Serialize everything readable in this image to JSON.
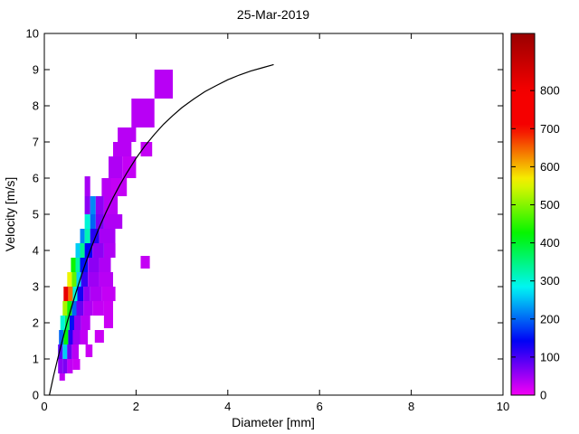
{
  "figure": {
    "background": "#ffffff",
    "axis_color": "#000000"
  },
  "chart_data": {
    "type": "heatmap",
    "title": "25-Mar-2019",
    "xlabel": "Diameter [mm]",
    "ylabel": "Velocity [m/s]",
    "xlim": [
      0,
      10
    ],
    "ylim": [
      0,
      10
    ],
    "xticks": [
      0,
      2,
      4,
      6,
      8,
      10
    ],
    "yticks": [
      0,
      1,
      2,
      3,
      4,
      5,
      6,
      7,
      8,
      9,
      10
    ],
    "grid": false,
    "legend": "none",
    "colorbar": {
      "position": "right",
      "min": 0,
      "max": 950,
      "ticks": [
        0,
        100,
        200,
        300,
        400,
        500,
        600,
        700,
        800
      ],
      "colormap": "reversed-hsv (magenta -> blue -> cyan -> green -> yellow -> orange -> red -> dark red)",
      "bottom_color": "#e600e6",
      "top_color": "#990000"
    },
    "cells_format": [
      "d_min_mm",
      "v_min_ms",
      "d_max_mm",
      "v_max_ms",
      "count"
    ],
    "cells": [
      [
        2.4,
        8.2,
        2.8,
        9.0,
        35
      ],
      [
        1.9,
        7.4,
        2.4,
        8.2,
        35
      ],
      [
        1.6,
        7.0,
        2.0,
        7.4,
        35
      ],
      [
        1.5,
        6.6,
        1.9,
        7.0,
        35
      ],
      [
        2.1,
        6.6,
        2.35,
        7.0,
        28
      ],
      [
        1.4,
        6.0,
        1.7,
        6.6,
        40
      ],
      [
        1.7,
        6.0,
        2.0,
        6.6,
        28
      ],
      [
        0.88,
        5.5,
        1.0,
        6.05,
        45
      ],
      [
        1.25,
        5.5,
        1.45,
        6.0,
        35
      ],
      [
        1.45,
        5.5,
        1.8,
        6.0,
        28
      ],
      [
        0.88,
        5.0,
        1.0,
        5.5,
        60
      ],
      [
        1.0,
        5.0,
        1.12,
        5.5,
        220
      ],
      [
        1.12,
        5.0,
        1.3,
        5.5,
        60
      ],
      [
        1.3,
        5.0,
        1.6,
        5.5,
        35
      ],
      [
        0.88,
        4.6,
        1.0,
        5.0,
        300
      ],
      [
        1.0,
        4.6,
        1.12,
        5.0,
        200
      ],
      [
        1.12,
        4.6,
        1.3,
        5.0,
        70
      ],
      [
        1.3,
        4.6,
        1.7,
        5.0,
        40
      ],
      [
        0.78,
        4.2,
        0.88,
        4.6,
        220
      ],
      [
        0.88,
        4.2,
        1.0,
        4.6,
        320
      ],
      [
        1.0,
        4.2,
        1.2,
        4.6,
        120
      ],
      [
        1.2,
        4.2,
        1.55,
        4.6,
        45
      ],
      [
        0.68,
        3.8,
        0.78,
        4.2,
        260
      ],
      [
        0.78,
        3.8,
        0.88,
        4.2,
        340
      ],
      [
        0.88,
        3.8,
        1.05,
        4.2,
        140
      ],
      [
        1.05,
        3.8,
        1.3,
        4.2,
        60
      ],
      [
        1.3,
        3.8,
        1.55,
        4.2,
        40
      ],
      [
        0.58,
        3.4,
        0.68,
        3.8,
        430
      ],
      [
        0.68,
        3.4,
        0.78,
        3.8,
        330
      ],
      [
        0.78,
        3.4,
        0.95,
        3.8,
        150
      ],
      [
        0.95,
        3.4,
        1.2,
        3.8,
        60
      ],
      [
        1.2,
        3.4,
        1.45,
        3.8,
        40
      ],
      [
        2.1,
        3.5,
        2.3,
        3.85,
        28
      ],
      [
        0.5,
        3.0,
        0.6,
        3.4,
        560
      ],
      [
        0.6,
        3.0,
        0.7,
        3.4,
        480
      ],
      [
        0.7,
        3.0,
        0.8,
        3.4,
        260
      ],
      [
        0.8,
        3.0,
        0.95,
        3.4,
        110
      ],
      [
        0.95,
        3.0,
        1.2,
        3.4,
        50
      ],
      [
        1.2,
        3.0,
        1.5,
        3.4,
        35
      ],
      [
        0.42,
        2.6,
        0.52,
        3.0,
        820
      ],
      [
        0.52,
        2.6,
        0.62,
        3.0,
        640
      ],
      [
        0.62,
        2.6,
        0.72,
        3.0,
        300
      ],
      [
        0.72,
        2.6,
        0.85,
        3.0,
        130
      ],
      [
        0.85,
        2.6,
        1.0,
        3.0,
        60
      ],
      [
        1.0,
        2.6,
        1.25,
        3.0,
        40
      ],
      [
        1.25,
        2.6,
        1.55,
        3.0,
        28
      ],
      [
        0.4,
        2.2,
        0.5,
        2.6,
        520
      ],
      [
        0.5,
        2.2,
        0.6,
        2.6,
        430
      ],
      [
        0.6,
        2.2,
        0.7,
        2.6,
        200
      ],
      [
        0.7,
        2.2,
        0.85,
        2.6,
        80
      ],
      [
        0.85,
        2.2,
        1.05,
        2.6,
        40
      ],
      [
        1.05,
        2.2,
        1.3,
        2.6,
        28
      ],
      [
        1.3,
        2.2,
        1.5,
        2.6,
        24
      ],
      [
        0.35,
        1.8,
        0.45,
        2.2,
        300
      ],
      [
        0.45,
        1.8,
        0.55,
        2.2,
        380
      ],
      [
        0.55,
        1.8,
        0.65,
        2.2,
        150
      ],
      [
        0.65,
        1.8,
        0.8,
        2.2,
        60
      ],
      [
        0.8,
        1.8,
        1.0,
        2.2,
        35
      ],
      [
        1.3,
        1.85,
        1.5,
        2.2,
        24
      ],
      [
        0.32,
        1.4,
        0.42,
        1.8,
        200
      ],
      [
        0.42,
        1.4,
        0.52,
        1.8,
        420
      ],
      [
        0.52,
        1.4,
        0.62,
        1.8,
        120
      ],
      [
        0.62,
        1.4,
        0.78,
        1.8,
        50
      ],
      [
        0.78,
        1.4,
        0.95,
        1.8,
        30
      ],
      [
        1.1,
        1.45,
        1.3,
        1.8,
        24
      ],
      [
        0.3,
        1.0,
        0.4,
        1.4,
        90
      ],
      [
        0.4,
        1.0,
        0.5,
        1.4,
        260
      ],
      [
        0.5,
        1.0,
        0.6,
        1.4,
        80
      ],
      [
        0.6,
        1.0,
        0.75,
        1.4,
        35
      ],
      [
        0.9,
        1.05,
        1.05,
        1.4,
        24
      ],
      [
        0.3,
        0.6,
        0.4,
        1.0,
        60
      ],
      [
        0.4,
        0.6,
        0.5,
        1.0,
        70
      ],
      [
        0.5,
        0.6,
        0.62,
        1.0,
        30
      ],
      [
        0.62,
        0.7,
        0.78,
        1.0,
        24
      ],
      [
        0.33,
        0.4,
        0.45,
        0.6,
        30
      ]
    ],
    "curve": {
      "name": "terminal-velocity-curve",
      "color": "#000000",
      "points": [
        [
          0.11,
          0.0
        ],
        [
          0.2,
          0.52
        ],
        [
          0.3,
          1.05
        ],
        [
          0.4,
          1.55
        ],
        [
          0.5,
          2.02
        ],
        [
          0.6,
          2.46
        ],
        [
          0.7,
          2.88
        ],
        [
          0.8,
          3.28
        ],
        [
          0.9,
          3.65
        ],
        [
          1.0,
          4.0
        ],
        [
          1.1,
          4.33
        ],
        [
          1.2,
          4.64
        ],
        [
          1.35,
          5.07
        ],
        [
          1.5,
          5.46
        ],
        [
          1.65,
          5.82
        ],
        [
          1.8,
          6.15
        ],
        [
          2.0,
          6.55
        ],
        [
          2.2,
          6.9
        ],
        [
          2.4,
          7.21
        ],
        [
          2.6,
          7.49
        ],
        [
          2.8,
          7.73
        ],
        [
          3.0,
          7.95
        ],
        [
          3.25,
          8.18
        ],
        [
          3.5,
          8.39
        ],
        [
          3.75,
          8.56
        ],
        [
          4.0,
          8.72
        ],
        [
          4.25,
          8.85
        ],
        [
          4.5,
          8.96
        ],
        [
          4.75,
          9.05
        ],
        [
          5.0,
          9.14
        ]
      ]
    }
  }
}
